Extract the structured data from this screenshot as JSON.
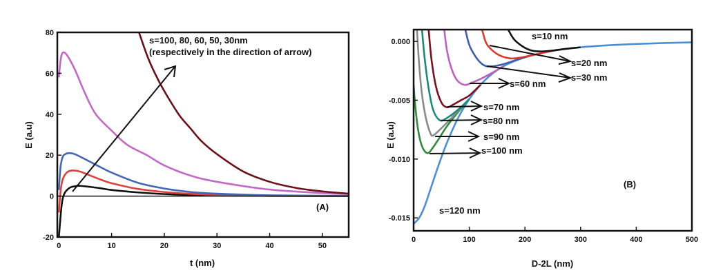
{
  "chart_data": [
    {
      "type": "line",
      "panel_label": "(A)",
      "xlabel": "t (nm)",
      "ylabel": "E (a.u)",
      "xlim": [
        -0.3,
        55
      ],
      "ylim": [
        -20,
        80
      ],
      "xticks": [
        0,
        10,
        20,
        30,
        40,
        50
      ],
      "yticks": [
        -20,
        0,
        20,
        40,
        60,
        80
      ],
      "grid": false,
      "annotation": [
        "s=100, 80, 60, 50, 30nm",
        "(respectively in the direction of arrow)"
      ],
      "zero_line": true,
      "series": [
        {
          "color": "#111111",
          "x": [
            0,
            0.5,
            1,
            2,
            3,
            4,
            6,
            8,
            10,
            15,
            20,
            25,
            30,
            40,
            55
          ],
          "y": [
            -20,
            -5,
            1,
            4,
            4.8,
            5,
            4.5,
            3.8,
            3,
            1.8,
            1,
            0.5,
            0.3,
            0.1,
            0
          ]
        },
        {
          "color": "#e0403a",
          "x": [
            0,
            0.3,
            0.7,
            1.5,
            2.5,
            4,
            6,
            8,
            10,
            15,
            20,
            25,
            30,
            40,
            55
          ],
          "y": [
            -8,
            2,
            8,
            11.5,
            12.5,
            12,
            10,
            8,
            6.3,
            3.5,
            2,
            1.1,
            0.6,
            0.2,
            0
          ]
        },
        {
          "color": "#4466b8",
          "x": [
            0,
            0.3,
            0.7,
            1.2,
            2,
            3,
            5,
            8,
            10,
            15,
            20,
            25,
            30,
            40,
            55
          ],
          "y": [
            3,
            14,
            19,
            20.5,
            21,
            20.5,
            18,
            14,
            11.5,
            6.5,
            3.7,
            2,
            1.2,
            0.4,
            0.1
          ]
        },
        {
          "color": "#c468c8",
          "x": [
            0,
            0.3,
            0.7,
            1.5,
            3,
            5,
            7,
            10,
            13,
            16.7,
            20,
            25,
            30,
            40,
            50,
            55
          ],
          "y": [
            58,
            66,
            70,
            69,
            62,
            50,
            40,
            32,
            25,
            20,
            15,
            10,
            7,
            3.2,
            1.5,
            1
          ]
        },
        {
          "color": "#6b1018",
          "x": [
            15.2,
            17,
            19,
            21,
            23,
            25,
            27,
            30,
            35,
            40,
            45,
            50,
            55
          ],
          "y": [
            80,
            67,
            56,
            47,
            39,
            33,
            27,
            20.5,
            12,
            7,
            4,
            2.3,
            1.2
          ]
        }
      ]
    },
    {
      "type": "line",
      "panel_label": "(B)",
      "xlabel": "D-2L (nm)",
      "ylabel": "E (a.u)",
      "xlim": [
        0,
        500
      ],
      "ylim": [
        -0.0161,
        0.001
      ],
      "xticks": [
        0,
        100,
        200,
        300,
        400,
        500
      ],
      "yticks": [
        0.0,
        -0.005,
        -0.01,
        -0.015
      ],
      "ytick_labels": [
        "0.000",
        "-0.005",
        "-0.010",
        "-0.015"
      ],
      "grid": false,
      "series": [
        {
          "name": "s=120 nm",
          "color": "#4a8fd4",
          "x": [
            0,
            10,
            20,
            30,
            45,
            60,
            80,
            100,
            120,
            140,
            160,
            180,
            200,
            220,
            250,
            300,
            350,
            400,
            450,
            500
          ],
          "y": [
            -0.0155,
            -0.015,
            -0.014,
            -0.0126,
            -0.0105,
            -0.0086,
            -0.0065,
            -0.0049,
            -0.0037,
            -0.0028,
            -0.00215,
            -0.0017,
            -0.00135,
            -0.0011,
            -0.0008,
            -0.0005,
            -0.00033,
            -0.00022,
            -0.00014,
            -8e-05
          ]
        },
        {
          "name": "s=100 nm",
          "color": "#2e8b3e",
          "x": [
            0,
            3,
            8,
            15,
            25,
            35,
            45,
            60,
            80,
            100
          ],
          "y": [
            -0.0037,
            -0.0055,
            -0.0075,
            -0.0089,
            -0.0095,
            -0.009,
            -0.0083,
            -0.0072,
            -0.006,
            -0.0049
          ]
        },
        {
          "name": "s=90 nm",
          "color": "#8a8a8a",
          "x": [
            6,
            10,
            15,
            22,
            30,
            35,
            45,
            60,
            80,
            100
          ],
          "y": [
            0.001,
            -0.002,
            -0.0045,
            -0.0065,
            -0.0078,
            -0.008,
            -0.0076,
            -0.0069,
            -0.0059,
            -0.0049
          ]
        },
        {
          "name": "s=80 nm",
          "color": "#1a8a7a",
          "x": [
            15,
            20,
            27,
            35,
            47,
            60,
            80,
            100
          ],
          "y": [
            0.001,
            -0.0015,
            -0.004,
            -0.0058,
            -0.0067,
            -0.0065,
            -0.0058,
            -0.0049
          ]
        },
        {
          "name": "s=70 nm",
          "color": "#7a1020",
          "x": [
            27,
            32,
            40,
            50,
            60,
            70,
            85,
            100,
            120
          ],
          "y": [
            0.001,
            -0.0015,
            -0.0038,
            -0.0052,
            -0.0056,
            -0.0054,
            -0.005,
            -0.0046,
            -0.0037
          ]
        },
        {
          "name": "s=60 nm",
          "color": "#c060c0",
          "x": [
            55,
            60,
            68,
            78,
            92,
            105,
            120,
            140,
            160
          ],
          "y": [
            0.001,
            -0.0008,
            -0.0023,
            -0.0033,
            -0.0037,
            -0.0035,
            -0.0032,
            -0.0027,
            -0.00215
          ]
        },
        {
          "name": "s=30 nm",
          "color": "#3f5db0",
          "x": [
            93,
            100,
            110,
            120,
            130,
            145,
            160,
            180,
            200,
            220
          ],
          "y": [
            0.001,
            -0.0003,
            -0.0012,
            -0.0018,
            -0.0021,
            -0.0021,
            -0.00195,
            -0.00165,
            -0.00135,
            -0.0011
          ]
        },
        {
          "name": "s=20 nm",
          "color": "#e03a30",
          "x": [
            123,
            130,
            140,
            155,
            175,
            195,
            210,
            230,
            250
          ],
          "y": [
            0.001,
            -0.0001,
            -0.0007,
            -0.0012,
            -0.00145,
            -0.00135,
            -0.0012,
            -0.001,
            -0.0008
          ]
        },
        {
          "name": "s=10 nm",
          "color": "#111111",
          "x": [
            170,
            180,
            195,
            210,
            225,
            245,
            270,
            300
          ],
          "y": [
            0.001,
            0.0002,
            -0.0004,
            -0.00075,
            -0.00085,
            -0.0008,
            -0.00065,
            -0.0005
          ]
        }
      ],
      "labels": [
        "s=10 nm",
        "s=20 nm",
        "s=30 nm",
        "s=60 nm",
        "s=70 nm",
        "s=80 nm",
        "s=90 nm",
        "s=100 nm",
        "s=120 nm"
      ]
    }
  ]
}
